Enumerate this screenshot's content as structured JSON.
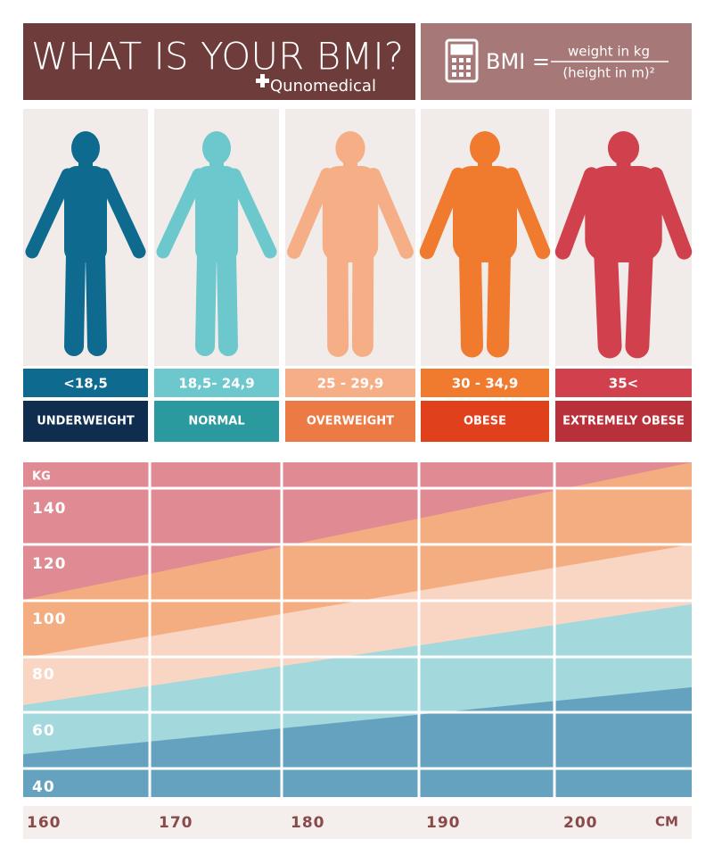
{
  "header": {
    "title": "WHAT IS YOUR BMI?",
    "brand": "Qunomedical",
    "formula": {
      "lhs": "BMI =",
      "numerator": "weight in kg",
      "denominator": "(height in m)²"
    }
  },
  "categories": [
    {
      "range": "<18,5",
      "label": "UNDERWEIGHT"
    },
    {
      "range": "18,5- 24,9",
      "label": "NORMAL"
    },
    {
      "range": "25 - 29,9",
      "label": "OVERWEIGHT"
    },
    {
      "range": "30 - 34,9",
      "label": "OBESE"
    },
    {
      "range": "35<",
      "label": "EXTREMELY OBESE"
    }
  ],
  "chart": {
    "y_unit": "KG",
    "y_ticks": [
      "140",
      "120",
      "100",
      "80",
      "60",
      "40"
    ],
    "x_ticks": [
      "160",
      "170",
      "180",
      "190",
      "200"
    ],
    "x_unit": "CM"
  }
}
